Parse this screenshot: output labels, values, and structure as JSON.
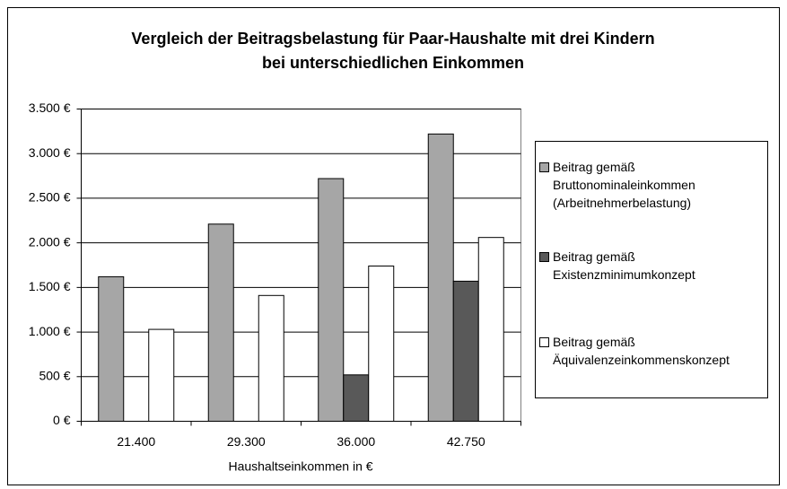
{
  "chart_data": {
    "type": "bar",
    "title": "Vergleich der Beitragsbelastung für Paar-Haushalte mit drei Kindern bei unterschiedlichen Einkommen",
    "x_label": "Haushaltseinkommen in €",
    "categories": [
      "21.400",
      "29.300",
      "36.000",
      "42.750"
    ],
    "series": [
      {
        "name": "Beitrag gemäß Bruttonominaleinkommen (Arbeitnehmerbelastung)",
        "color": "#a6a6a6",
        "values": [
          1620,
          2210,
          2720,
          3220
        ]
      },
      {
        "name": "Beitrag gemäß Existenzminimumkonzept",
        "color": "#595959",
        "values": [
          0,
          0,
          520,
          1570
        ]
      },
      {
        "name": "Beitrag gemäß Äquivalenzeinkommenskonzept",
        "color": "#ffffff",
        "values": [
          1030,
          1410,
          1740,
          2060
        ]
      }
    ],
    "ylim": [
      0,
      3500
    ],
    "yticks": [
      {
        "value": 0,
        "label": "0 €"
      },
      {
        "value": 500,
        "label": "500 €"
      },
      {
        "value": 1000,
        "label": "1.000 €"
      },
      {
        "value": 1500,
        "label": "1.500 €"
      },
      {
        "value": 2000,
        "label": "2.000 €"
      },
      {
        "value": 2500,
        "label": "2.500 €"
      },
      {
        "value": 3000,
        "label": "3.000 €"
      },
      {
        "value": 3500,
        "label": "3.500 €"
      }
    ],
    "grid": true,
    "legend": "right"
  }
}
